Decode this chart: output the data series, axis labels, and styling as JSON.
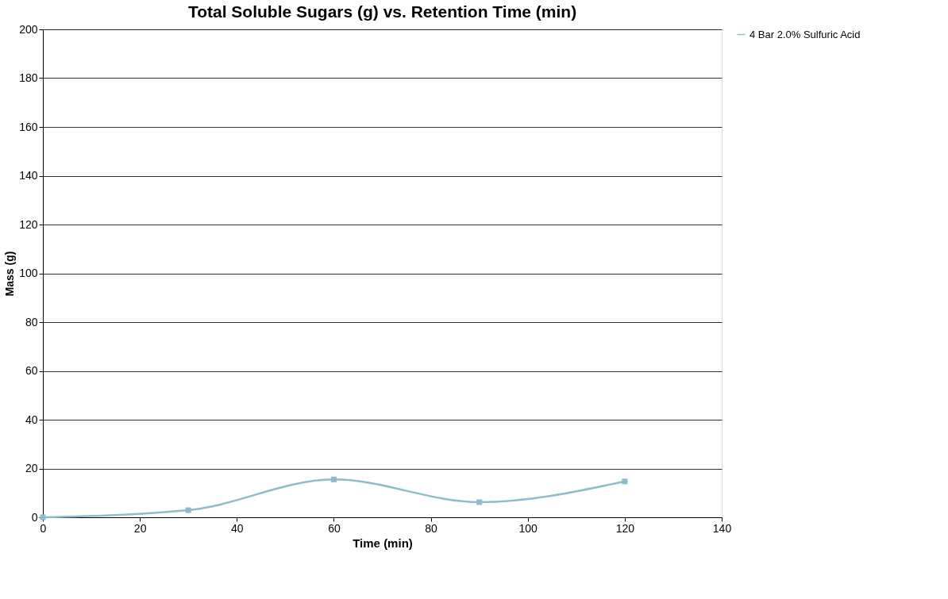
{
  "chart_data": {
    "type": "line",
    "title": "Total Soluble Sugars (g) vs. Retention Time (min)",
    "xlabel": "Time     (min)",
    "ylabel": "Mass (g)",
    "x": [
      0,
      30,
      60,
      90,
      120
    ],
    "series": [
      {
        "name": "4 Bar 2.0% Sulfuric Acid",
        "color": "#8dbdcc",
        "values": [
          0,
          2.9,
          15.5,
          6.2,
          14.7
        ]
      }
    ],
    "xlim": [
      0,
      140
    ],
    "xticks": [
      0,
      20,
      40,
      60,
      80,
      100,
      120,
      140
    ],
    "ylim": [
      0,
      200
    ],
    "yticks": [
      0,
      20,
      40,
      60,
      80,
      100,
      120,
      140,
      160,
      180,
      200
    ],
    "grid": "y",
    "legend": "right",
    "marker": "square",
    "line_style": "solid"
  }
}
